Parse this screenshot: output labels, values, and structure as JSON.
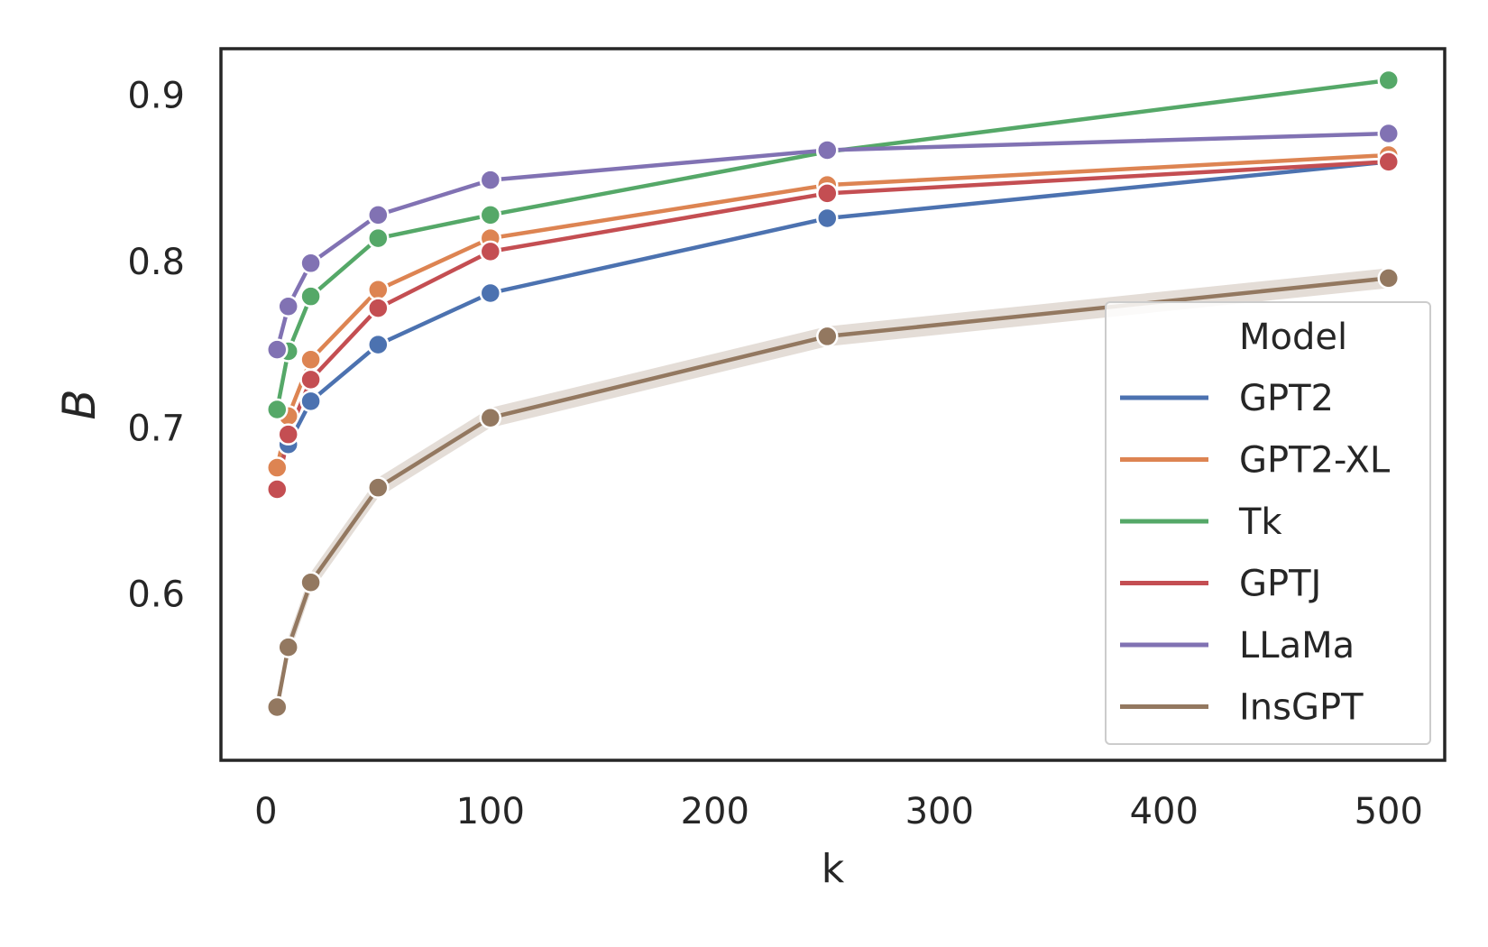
{
  "chart_data": {
    "type": "line",
    "xlabel": "k",
    "ylabel": "B",
    "xlim": [
      -20,
      525
    ],
    "ylim": [
      0.5,
      0.928
    ],
    "xticks": [
      0,
      100,
      200,
      300,
      400,
      500
    ],
    "yticks": [
      0.6,
      0.7,
      0.8,
      0.9
    ],
    "xtick_labels": [
      "0",
      "100",
      "200",
      "300",
      "400",
      "500"
    ],
    "ytick_labels": [
      "0.6",
      "0.7",
      "0.8",
      "0.9"
    ],
    "grid": false,
    "legend": {
      "title": "Model",
      "position": "lower-right"
    },
    "x": [
      5,
      10,
      20,
      50,
      100,
      250,
      500
    ],
    "series": [
      {
        "name": "GPT2",
        "color": "#4c72b0",
        "values": [
          0.675,
          0.69,
          0.716,
          0.75,
          0.781,
          0.826,
          0.86
        ]
      },
      {
        "name": "GPT2-XL",
        "color": "#dd8452",
        "values": [
          0.676,
          0.707,
          0.741,
          0.783,
          0.814,
          0.846,
          0.864
        ]
      },
      {
        "name": "Tk",
        "color": "#55a868",
        "values": [
          0.711,
          0.746,
          0.779,
          0.814,
          0.828,
          0.866,
          0.909
        ]
      },
      {
        "name": "GPTJ",
        "color": "#c44e52",
        "values": [
          0.663,
          0.696,
          0.729,
          0.772,
          0.806,
          0.841,
          0.86
        ]
      },
      {
        "name": "LLaMa",
        "color": "#8172b3",
        "values": [
          0.747,
          0.773,
          0.799,
          0.828,
          0.849,
          0.867,
          0.877
        ]
      },
      {
        "name": "InsGPT",
        "color": "#937860",
        "values": [
          0.532,
          0.568,
          0.607,
          0.664,
          0.706,
          0.755,
          0.79
        ],
        "band": 0.006
      }
    ]
  }
}
